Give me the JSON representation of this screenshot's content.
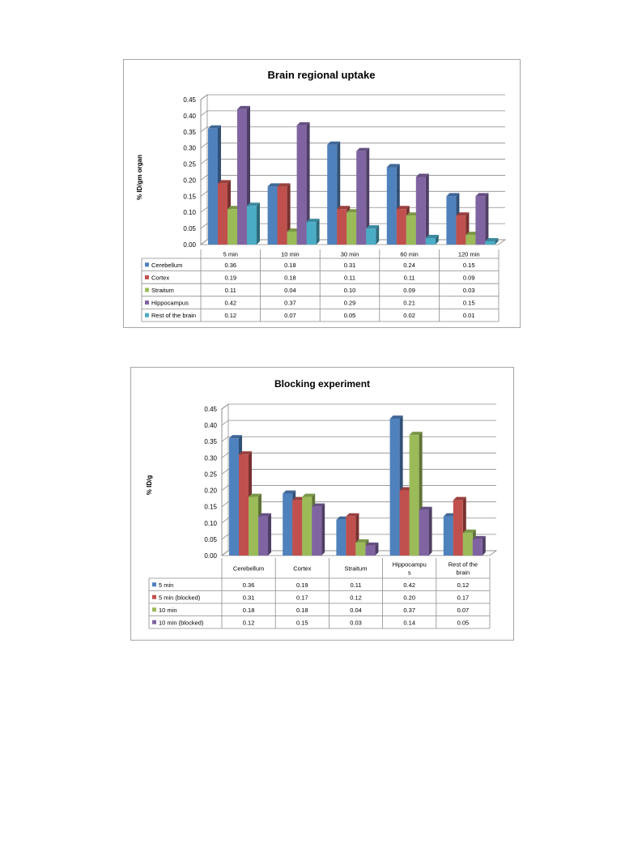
{
  "chart_data": [
    {
      "type": "bar",
      "title": "Brain regional uptake",
      "ylabel": "% ID/gm organ",
      "xlabel": "",
      "ylim": [
        0,
        0.45
      ],
      "ytick_step": 0.05,
      "yticks": [
        "0.00",
        "0.05",
        "0.10",
        "0.15",
        "0.20",
        "0.25",
        "0.30",
        "0.35",
        "0.40",
        "0.45"
      ],
      "categories": [
        "5 min",
        "10 min",
        "30 min",
        "60 min",
        "120 min"
      ],
      "series": [
        {
          "name": "Cerebellum",
          "color": "#4f81bd",
          "values": [
            0.36,
            0.18,
            0.31,
            0.24,
            0.15
          ],
          "labels": [
            "0.36",
            "0.18",
            "0.31",
            "0.24",
            "0.15"
          ]
        },
        {
          "name": "Cortex",
          "color": "#c0504d",
          "values": [
            0.19,
            0.18,
            0.11,
            0.11,
            0.09
          ],
          "labels": [
            "0.19",
            "0.18",
            "0.11",
            "0.11",
            "0.09"
          ]
        },
        {
          "name": "Straitum",
          "color": "#9bbb59",
          "values": [
            0.11,
            0.04,
            0.1,
            0.09,
            0.03
          ],
          "labels": [
            "0.11",
            "0.04",
            "0.10",
            "0.09",
            "0.03"
          ]
        },
        {
          "name": "Hippocampus",
          "color": "#8064a2",
          "values": [
            0.42,
            0.37,
            0.29,
            0.21,
            0.15
          ],
          "labels": [
            "0.42",
            "0.37",
            "0.29",
            "0.21",
            "0.15"
          ]
        },
        {
          "name": "Rest of the brain",
          "color": "#4bacc6",
          "values": [
            0.12,
            0.07,
            0.05,
            0.02,
            0.01
          ],
          "labels": [
            "0.12",
            "0.07",
            "0.05",
            "0.02",
            "0.01"
          ]
        }
      ],
      "grid": true,
      "legend": "data-table"
    },
    {
      "type": "bar",
      "title": "Blocking experiment",
      "ylabel": "% ID/g",
      "xlabel": "",
      "ylim": [
        0,
        0.45
      ],
      "ytick_step": 0.05,
      "yticks": [
        "0.00",
        "0.05",
        "0.10",
        "0.15",
        "0.20",
        "0.25",
        "0.30",
        "0.35",
        "0.40",
        "0.45"
      ],
      "categories": [
        "Cerebellum",
        "Cortex",
        "Straitum",
        "Hippocampus",
        "Rest of the brain"
      ],
      "category_lines": [
        [
          "Cerebellum"
        ],
        [
          "Cortex"
        ],
        [
          "Straitum"
        ],
        [
          "Hippocampu",
          "s"
        ],
        [
          "Rest of the",
          "brain"
        ]
      ],
      "series": [
        {
          "name": "5 min",
          "color": "#4f81bd",
          "values": [
            0.36,
            0.19,
            0.11,
            0.42,
            0.12
          ],
          "labels": [
            "0.36",
            "0.19",
            "0.11",
            "0.42",
            "0.12"
          ]
        },
        {
          "name": "5 min (blocked)",
          "color": "#c0504d",
          "values": [
            0.31,
            0.17,
            0.12,
            0.2,
            0.17
          ],
          "labels": [
            "0.31",
            "0.17",
            "0.12",
            "0.20",
            "0.17"
          ]
        },
        {
          "name": "10 min",
          "color": "#9bbb59",
          "values": [
            0.18,
            0.18,
            0.04,
            0.37,
            0.07
          ],
          "labels": [
            "0.18",
            "0.18",
            "0.04",
            "0.37",
            "0.07"
          ]
        },
        {
          "name": "10 min (blocked)",
          "color": "#8064a2",
          "values": [
            0.12,
            0.15,
            0.03,
            0.14,
            0.05
          ],
          "labels": [
            "0.12",
            "0.15",
            "0.03",
            "0.14",
            "0.05"
          ]
        }
      ],
      "grid": true,
      "legend": "data-table"
    }
  ]
}
